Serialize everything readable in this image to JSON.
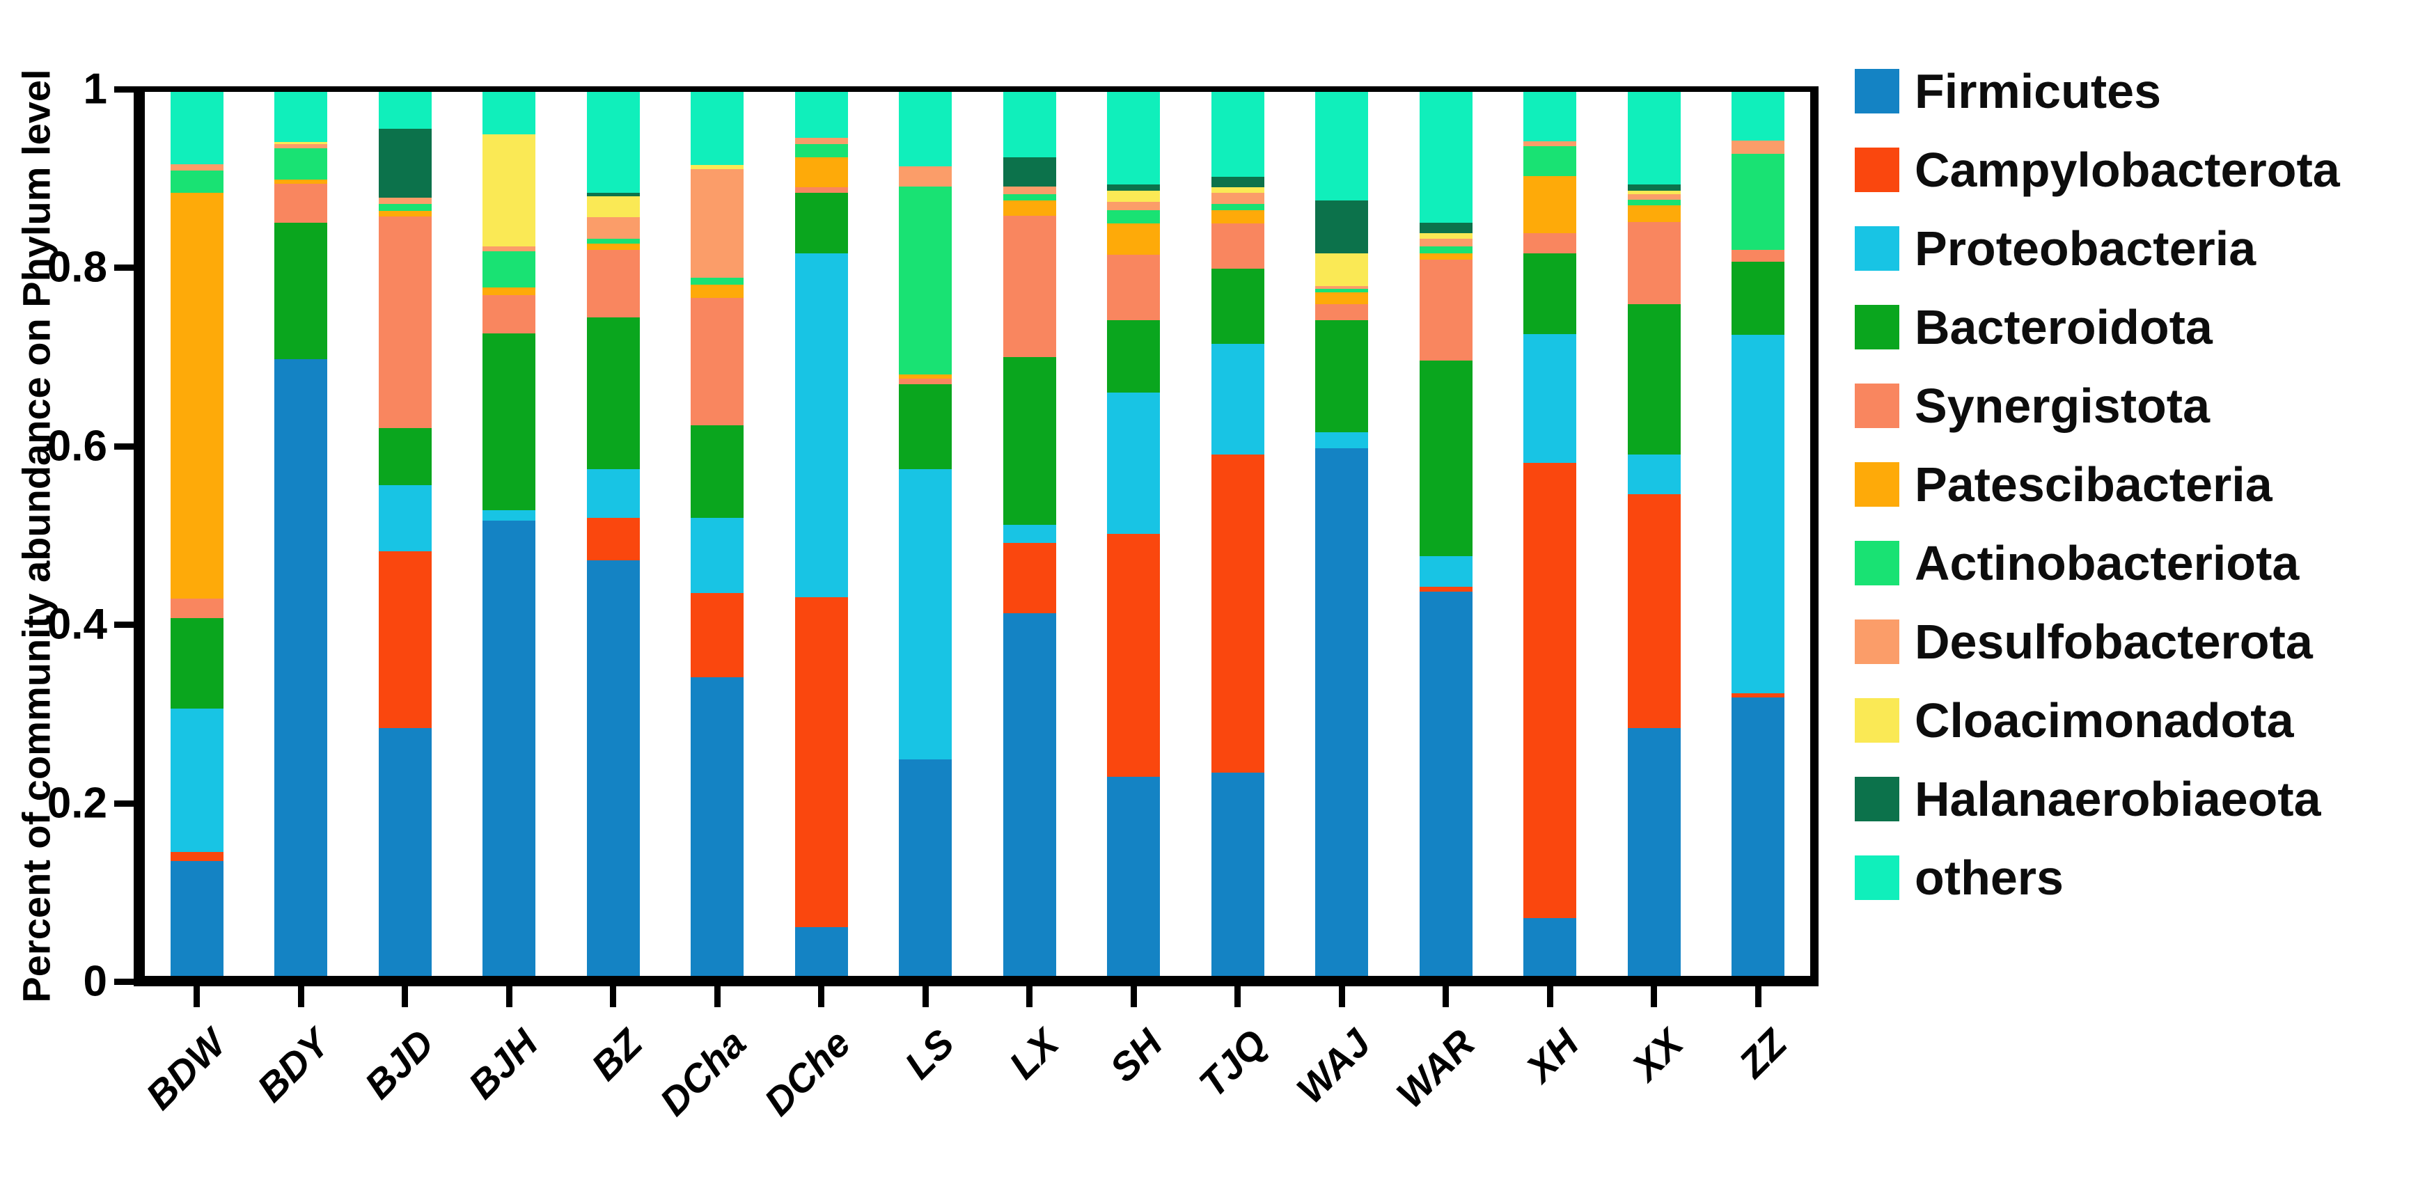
{
  "figure": {
    "ylabel": "Percent of community abundance on Phylum level"
  },
  "chart_data": {
    "type": "bar",
    "stacked": true,
    "title": "",
    "xlabel": "",
    "ylabel": "Percent of community abundance on Phylum level",
    "ylim": [
      0,
      1
    ],
    "grid": false,
    "legend_position": "right",
    "background_color": "#ffffff",
    "axis_color": "#000000",
    "yticks": [
      {
        "label": "0",
        "value": 0
      },
      {
        "label": "0.2",
        "value": 0.2
      },
      {
        "label": "0.4",
        "value": 0.4
      },
      {
        "label": "0.6",
        "value": 0.6
      },
      {
        "label": "0.8",
        "value": 0.8
      },
      {
        "label": "1",
        "value": 1
      }
    ],
    "categories": [
      "BDW",
      "BDY",
      "BJD",
      "BJH",
      "BZ",
      "DCha",
      "DChe",
      "LS",
      "LX",
      "SH",
      "TJQ",
      "WAJ",
      "WAR",
      "XH",
      "XX",
      "ZZ"
    ],
    "series": [
      {
        "name": "Firmicutes",
        "color": "#1483c4",
        "values": [
          0.13,
          0.698,
          0.28,
          0.515,
          0.47,
          0.338,
          0.055,
          0.245,
          0.41,
          0.225,
          0.23,
          0.597,
          0.435,
          0.065,
          0.28,
          0.315
        ]
      },
      {
        "name": "Campylobacterota",
        "color": "#fa470e",
        "values": [
          0.01,
          0.0,
          0.2,
          0.0,
          0.048,
          0.095,
          0.373,
          0.0,
          0.08,
          0.275,
          0.36,
          0.0,
          0.005,
          0.515,
          0.265,
          0.005
        ]
      },
      {
        "name": "Proteobacteria",
        "color": "#18c4e4",
        "values": [
          0.162,
          0.0,
          0.075,
          0.012,
          0.055,
          0.085,
          0.389,
          0.328,
          0.02,
          0.16,
          0.125,
          0.018,
          0.035,
          0.146,
          0.045,
          0.405
        ]
      },
      {
        "name": "Bacteroidota",
        "color": "#0aa61e",
        "values": [
          0.103,
          0.154,
          0.065,
          0.2,
          0.172,
          0.105,
          0.069,
          0.096,
          0.19,
          0.082,
          0.085,
          0.127,
          0.221,
          0.091,
          0.17,
          0.083
        ]
      },
      {
        "name": "Synergistota",
        "color": "#f9865f",
        "values": [
          0.022,
          0.044,
          0.239,
          0.043,
          0.076,
          0.144,
          0.006,
          0.007,
          0.16,
          0.074,
          0.051,
          0.018,
          0.114,
          0.023,
          0.093,
          0.013
        ]
      },
      {
        "name": "Patescibacteria",
        "color": "#feaa09",
        "values": [
          0.459,
          0.005,
          0.006,
          0.009,
          0.007,
          0.015,
          0.034,
          0.004,
          0.017,
          0.035,
          0.015,
          0.013,
          0.007,
          0.065,
          0.019,
          0.0
        ]
      },
      {
        "name": "Actinobacteriota",
        "color": "#19e273",
        "values": [
          0.025,
          0.035,
          0.008,
          0.041,
          0.006,
          0.008,
          0.015,
          0.213,
          0.007,
          0.015,
          0.007,
          0.004,
          0.008,
          0.034,
          0.006,
          0.109
        ]
      },
      {
        "name": "Desulfobacterota",
        "color": "#fb9d69",
        "values": [
          0.007,
          0.005,
          0.007,
          0.005,
          0.024,
          0.123,
          0.007,
          0.023,
          0.009,
          0.01,
          0.013,
          0.003,
          0.009,
          0.005,
          0.006,
          0.015
        ]
      },
      {
        "name": "Cloacimonadota",
        "color": "#fae955",
        "values": [
          0.0,
          0.002,
          0.0,
          0.127,
          0.024,
          0.004,
          0.0,
          0.0,
          0.0,
          0.012,
          0.006,
          0.037,
          0.006,
          0.0,
          0.004,
          0.0
        ]
      },
      {
        "name": "Halanaerobiaeota",
        "color": "#0c724b",
        "values": [
          0.0,
          0.0,
          0.078,
          0.0,
          0.004,
          0.0,
          0.0,
          0.0,
          0.033,
          0.007,
          0.012,
          0.06,
          0.012,
          0.0,
          0.007,
          0.0
        ]
      },
      {
        "name": "others",
        "color": "#10efbb",
        "values": [
          0.082,
          0.057,
          0.042,
          0.048,
          0.114,
          0.083,
          0.052,
          0.084,
          0.074,
          0.105,
          0.096,
          0.123,
          0.148,
          0.056,
          0.105,
          0.055
        ]
      }
    ]
  }
}
